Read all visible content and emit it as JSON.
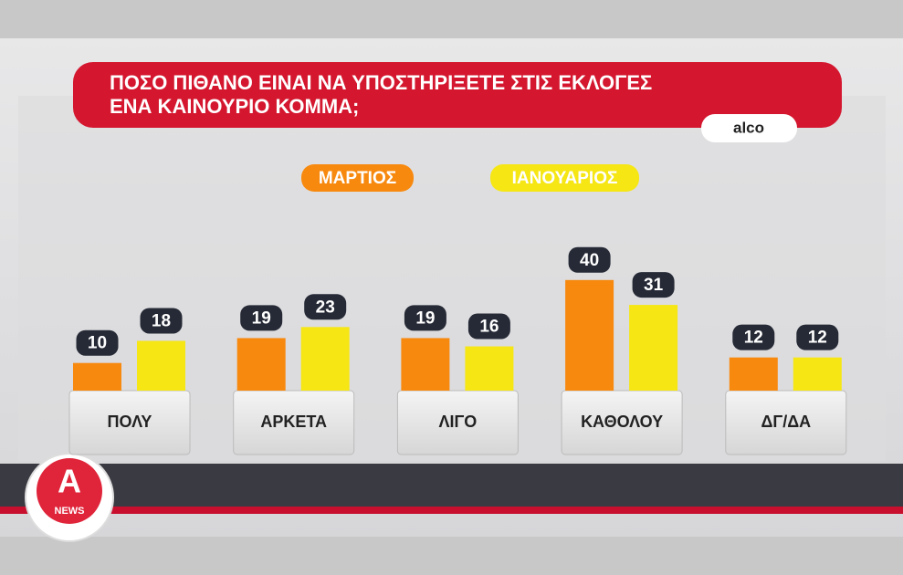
{
  "chart_data": {
    "type": "bar",
    "title": [
      "ΠΟΣΟ ΠΙΘΑΝΟ ΕΙΝΑΙ ΝΑ ΥΠΟΣΤΗΡΙΞΕΤΕ ΣΤΙΣ ΕΚΛΟΓΕΣ",
      "ΕΝΑ ΚΑΙΝΟΥΡΙΟ ΚΟΜΜΑ;"
    ],
    "source": "alco",
    "categories": [
      "ΠΟΛΥ",
      "ΑΡΚΕΤΑ",
      "ΛΙΓΟ",
      "ΚΑΘΟΛΟΥ",
      "ΔΓ/ΔΑ"
    ],
    "series": [
      {
        "name": "ΜΑΡΤΙΟΣ",
        "color": "#f7890f",
        "values": [
          10,
          19,
          19,
          40,
          12
        ]
      },
      {
        "name": "ΙΑΝΟΥΑΡΙΟΣ",
        "color": "#f5e614",
        "values": [
          18,
          23,
          16,
          31,
          12
        ]
      }
    ],
    "logo": {
      "letter": "A",
      "label": "NEWS"
    }
  }
}
